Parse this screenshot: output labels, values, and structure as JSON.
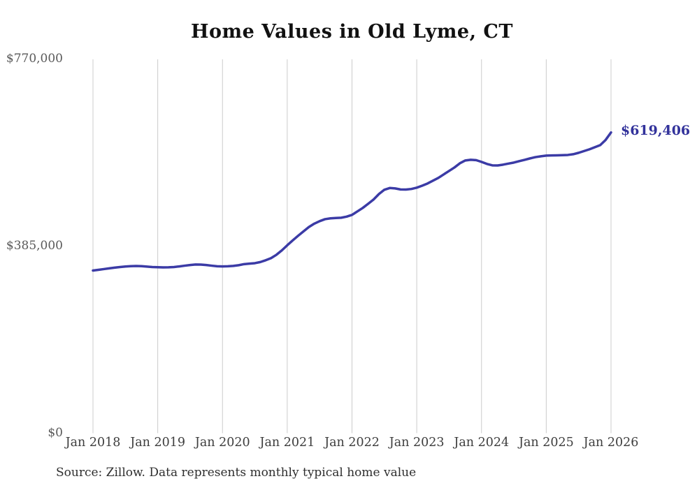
{
  "chart_data": {
    "type": "line",
    "title": "Home Values in Old Lyme, CT",
    "source": "Source: Zillow. Data represents monthly typical home value",
    "series_name": "Monthly typical home value",
    "frequency": "monthly",
    "start_month": "Jan 2018",
    "end_month": "Jan 2026",
    "latest_value": 619406,
    "end_label": "$619,406",
    "x_tick_labels": [
      "Jan 2018",
      "Jan 2019",
      "Jan 2020",
      "Jan 2021",
      "Jan 2022",
      "Jan 2023",
      "Jan 2024",
      "Jan 2025",
      "Jan 2026"
    ],
    "x_tick_month_indices": [
      0,
      12,
      24,
      36,
      48,
      60,
      72,
      84,
      96
    ],
    "y_tick_labels": [
      "$0",
      "$385,000",
      "$770,000"
    ],
    "y_tick_values": [
      0,
      385000,
      770000
    ],
    "ylim": [
      0,
      770000
    ],
    "grid": "vertical-only",
    "legend": "none",
    "line_color": "#3b3ba6",
    "end_label_color": "#32329b",
    "gridline_color": "#cccccc",
    "values": [
      335000,
      336500,
      338000,
      339500,
      341000,
      342300,
      343300,
      344000,
      344300,
      344000,
      343200,
      342300,
      341800,
      341500,
      341600,
      342300,
      343500,
      345000,
      346300,
      347400,
      347200,
      346300,
      345000,
      343800,
      343500,
      343800,
      344500,
      346000,
      348200,
      349300,
      350200,
      352500,
      356200,
      360500,
      367500,
      376500,
      387000,
      397000,
      406500,
      415500,
      424500,
      431500,
      436700,
      440800,
      442500,
      443200,
      443800,
      446000,
      449600,
      456800,
      464000,
      472600,
      481300,
      492700,
      501400,
      505000,
      504200,
      502000,
      501800,
      503000,
      505700,
      509800,
      514300,
      520100,
      525800,
      533000,
      540200,
      547400,
      556000,
      561700,
      563100,
      562400,
      558800,
      554600,
      551700,
      551500,
      553100,
      555300,
      557400,
      560300,
      563100,
      566000,
      568600,
      570300,
      571700,
      572100,
      572300,
      572600,
      573100,
      574600,
      577500,
      581100,
      584700,
      589000,
      593300,
      604000,
      619406
    ]
  }
}
